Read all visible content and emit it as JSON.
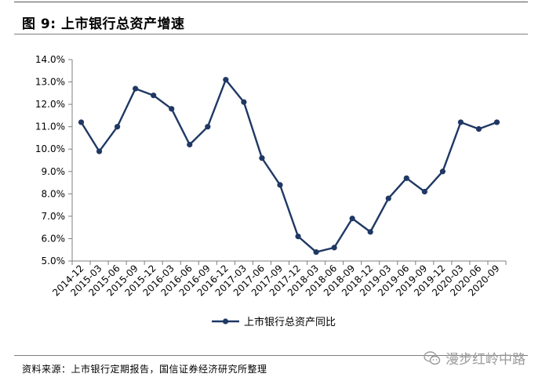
{
  "figure": {
    "title": "图 9:  上市银行总资产增速",
    "source": "资料来源：上市银行定期报告，国信证券经济研究所整理",
    "watermark": "漫步红岭中路",
    "watermark_icon": "wechat-icon"
  },
  "chart_data": {
    "type": "line",
    "title": "",
    "xlabel": "",
    "ylabel": "",
    "x": [
      "2014-12",
      "2015-03",
      "2015-06",
      "2015-09",
      "2015-12",
      "2016-03",
      "2016-06",
      "2016-09",
      "2016-12",
      "2017-03",
      "2017-06",
      "2017-09",
      "2017-12",
      "2018-03",
      "2018-06",
      "2018-09",
      "2018-12",
      "2019-03",
      "2019-06",
      "2019-09",
      "2019-12",
      "2020-03",
      "2020-06",
      "2020-09"
    ],
    "series": [
      {
        "name": "上市银行总资产同比",
        "color": "#1f3864",
        "values": [
          11.2,
          9.9,
          11.0,
          12.7,
          12.4,
          11.8,
          10.2,
          11.0,
          13.1,
          12.1,
          9.6,
          8.4,
          6.1,
          5.4,
          5.6,
          6.9,
          6.3,
          7.8,
          8.7,
          8.1,
          9.0,
          11.2,
          10.9,
          11.2
        ]
      }
    ],
    "ylim": [
      5.0,
      14.0
    ],
    "yticks": [
      5.0,
      6.0,
      7.0,
      8.0,
      9.0,
      10.0,
      11.0,
      12.0,
      13.0,
      14.0
    ],
    "ytick_format": "percent_1dp",
    "grid": false,
    "legend_position": "bottom-center"
  }
}
